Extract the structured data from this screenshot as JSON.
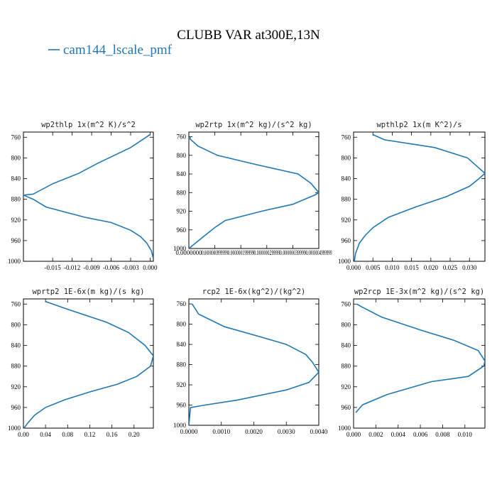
{
  "figure": {
    "title": "CLUBB VAR at300E,13N",
    "legend": {
      "label": "cam144_lscale_pmf",
      "color": "#1f77b4"
    }
  },
  "chart_data": [
    {
      "type": "line",
      "title": "wp2thlp  1x(m^2 K)/s^2",
      "ylim": [
        1000,
        750
      ],
      "yticks": [
        760,
        800,
        840,
        880,
        920,
        960,
        1000
      ],
      "xlim": [
        -0.0195,
        0.0005
      ],
      "xticks": [
        -0.015,
        -0.012,
        -0.009,
        -0.006,
        -0.003,
        0.0
      ],
      "xtick_labels": [
        "-0.015",
        "-0.012",
        "-0.009",
        "-0.006",
        "-0.003",
        "0.000"
      ],
      "x": [
        0.0,
        -0.003,
        -0.008,
        -0.011,
        -0.015,
        -0.018,
        -0.0195,
        -0.018,
        -0.016,
        -0.01,
        -0.006,
        -0.003,
        -0.0015,
        -0.0005,
        0.0002,
        0.0005
      ],
      "y": [
        755,
        780,
        810,
        830,
        850,
        870,
        872,
        880,
        895,
        915,
        925,
        940,
        952,
        965,
        980,
        995
      ]
    },
    {
      "type": "line",
      "title": "wp2rtp  1x(m^2 kg)/(s^2 kg)",
      "ylim": [
        1000,
        750
      ],
      "yticks": [
        760,
        800,
        840,
        880,
        920,
        960,
        1000
      ],
      "xlim": [
        0,
        1
      ],
      "xticks": [
        0.0,
        0.2,
        0.4,
        0.6,
        0.8,
        1.0
      ],
      "xtick_labels": [
        "0.0000000",
        "0.0000000999999",
        "0.000000199999",
        "0.00000029999",
        "0.00000039999",
        "0.0000004999999"
      ],
      "x": [
        0.01,
        0.01,
        0.07,
        0.22,
        0.52,
        0.84,
        0.94,
        1.0,
        0.97,
        0.8,
        0.56,
        0.28,
        0.2,
        0.11,
        0.0
      ],
      "y": [
        760,
        765,
        780,
        800,
        820,
        840,
        860,
        880,
        885,
        905,
        920,
        940,
        955,
        975,
        1000
      ]
    },
    {
      "type": "line",
      "title": "wpthlp2  1x(m K^2)/s",
      "ylim": [
        1000,
        750
      ],
      "yticks": [
        760,
        800,
        840,
        880,
        920,
        960,
        1000
      ],
      "xlim": [
        0,
        0.034
      ],
      "xticks": [
        0.0,
        0.005,
        0.01,
        0.015,
        0.02,
        0.025,
        0.03
      ],
      "xtick_labels": [
        "0.000",
        "0.005",
        "0.010",
        "0.015",
        "0.020",
        "0.025",
        "0.030"
      ],
      "x": [
        0.005,
        0.008,
        0.021,
        0.0295,
        0.034,
        0.0325,
        0.03,
        0.024,
        0.016,
        0.009,
        0.005,
        0.003,
        0.0015,
        0.0005,
        0.0002
      ],
      "y": [
        755,
        765,
        780,
        800,
        830,
        840,
        855,
        875,
        895,
        915,
        935,
        950,
        965,
        985,
        1000
      ]
    },
    {
      "type": "line",
      "title": "wprtp2  1E-6x(m kg)/(s kg)",
      "ylim": [
        1000,
        750
      ],
      "yticks": [
        760,
        800,
        840,
        880,
        920,
        960,
        1000
      ],
      "xlim": [
        0,
        0.235
      ],
      "xticks": [
        0.0,
        0.04,
        0.08,
        0.12,
        0.16,
        0.2
      ],
      "xtick_labels": [
        "0.00",
        "0.04",
        "0.08",
        "0.12",
        "0.16",
        "0.20"
      ],
      "x": [
        0.04,
        0.08,
        0.15,
        0.19,
        0.22,
        0.235,
        0.23,
        0.205,
        0.17,
        0.12,
        0.075,
        0.04,
        0.02,
        0.008,
        0.001
      ],
      "y": [
        755,
        770,
        795,
        815,
        840,
        860,
        880,
        900,
        915,
        930,
        945,
        960,
        975,
        990,
        1000
      ]
    },
    {
      "type": "line",
      "title": "rcp2  1E-6x(kg^2)/(kg^2)",
      "ylim": [
        1000,
        750
      ],
      "yticks": [
        760,
        800,
        840,
        880,
        920,
        960,
        1000
      ],
      "xlim": [
        0,
        0.004
      ],
      "xticks": [
        0.0,
        0.001,
        0.002,
        0.003,
        0.004
      ],
      "xtick_labels": [
        "0.0000",
        "0.0010",
        "0.0020",
        "0.0030",
        "0.0040"
      ],
      "x": [
        0.0001,
        0.0003,
        0.0011,
        0.0022,
        0.003,
        0.0036,
        0.0038,
        0.004,
        0.0037,
        0.003,
        0.0015,
        0.0005,
        5e-05,
        0.0
      ],
      "y": [
        760,
        780,
        805,
        825,
        840,
        860,
        875,
        895,
        915,
        930,
        950,
        960,
        965,
        1000
      ]
    },
    {
      "type": "line",
      "title": "wp2rcp  1E-3x(m^2 kg)/(s^2 kg)",
      "ylim": [
        1000,
        750
      ],
      "yticks": [
        760,
        800,
        840,
        880,
        920,
        960,
        1000
      ],
      "xlim": [
        0,
        0.0118
      ],
      "xticks": [
        0.0,
        0.002,
        0.004,
        0.006,
        0.008,
        0.01
      ],
      "xtick_labels": [
        "0.000",
        "0.002",
        "0.004",
        "0.006",
        "0.008",
        "0.010"
      ],
      "x": [
        0.0003,
        0.0007,
        0.0025,
        0.006,
        0.009,
        0.0112,
        0.0118,
        0.0117,
        0.0103,
        0.007,
        0.003,
        0.0008,
        0.0002
      ],
      "y": [
        760,
        765,
        785,
        810,
        830,
        850,
        870,
        880,
        900,
        910,
        935,
        955,
        970
      ]
    }
  ]
}
